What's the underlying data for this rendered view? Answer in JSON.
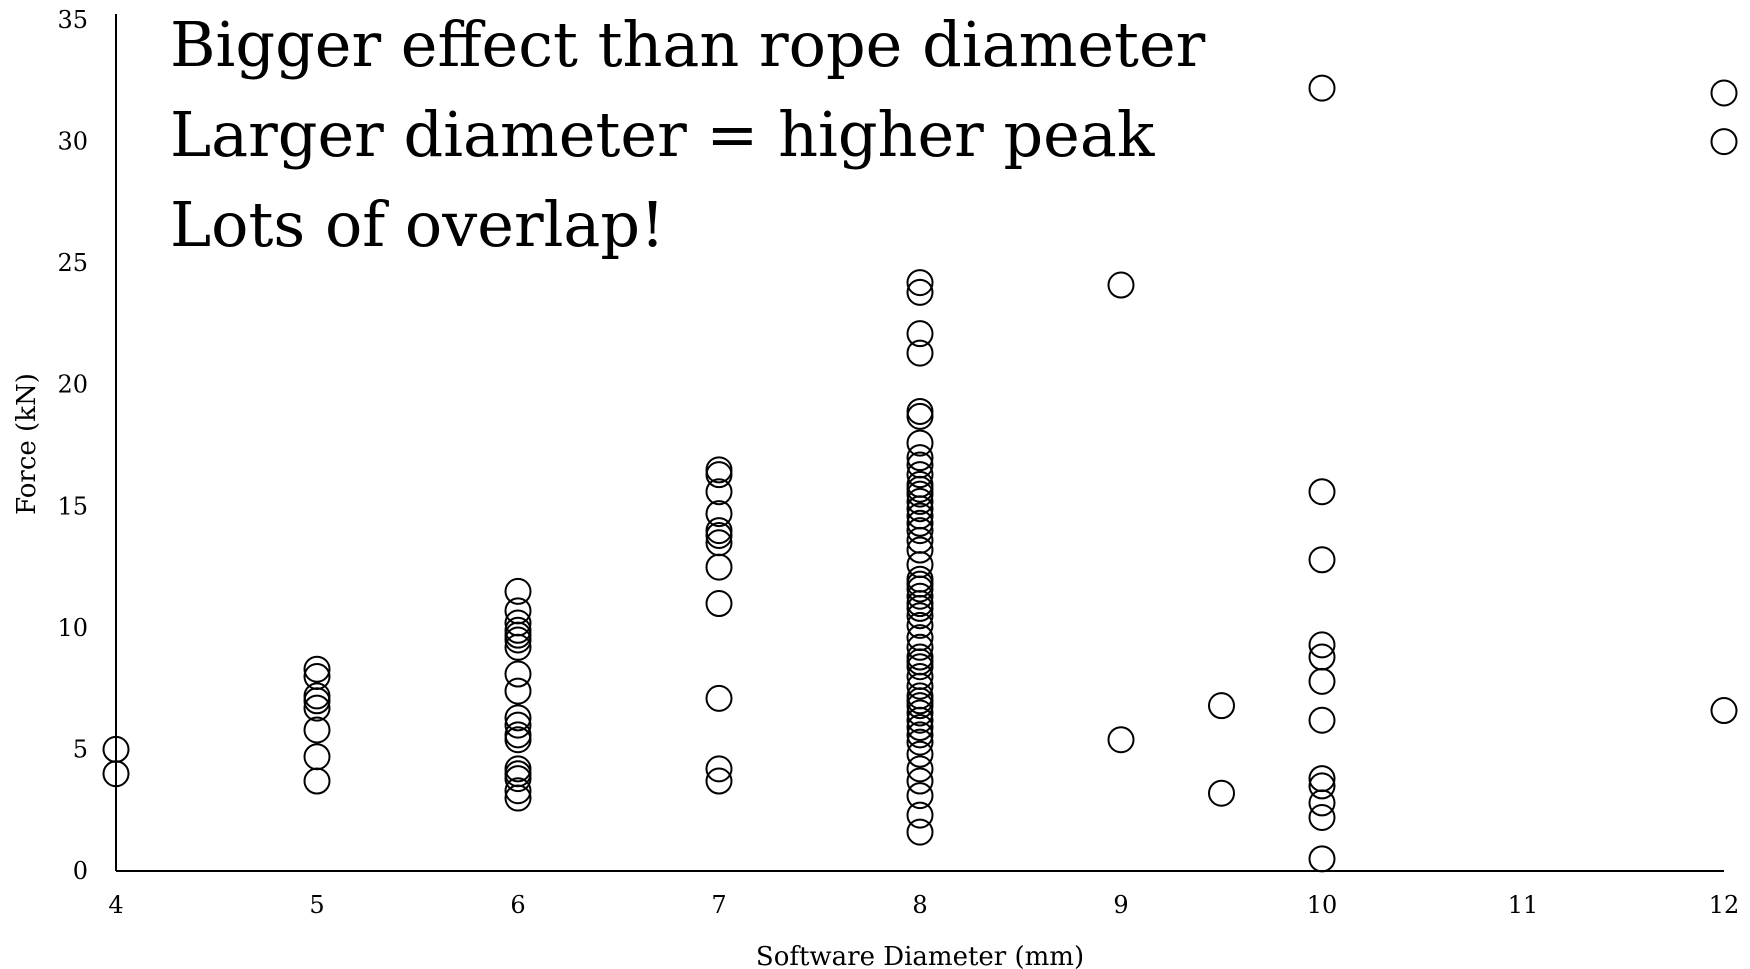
{
  "chart_data": {
    "type": "scatter",
    "title": "",
    "xlabel": "Software Diameter (mm)",
    "ylabel": "Force (kN)",
    "xlim": [
      4,
      12
    ],
    "ylim": [
      0,
      35
    ],
    "x_ticks": [
      "4",
      "5",
      "6",
      "7",
      "8",
      "9",
      "10",
      "11",
      "12"
    ],
    "y_ticks": [
      "0",
      "5",
      "10",
      "15",
      "20",
      "25",
      "30",
      "35"
    ],
    "grid": false,
    "legend": "none",
    "marker": "open-circle",
    "marker_color": "#000000",
    "annotations": [
      "Bigger effect than rope diameter",
      "Larger diameter = higher peak",
      "Lots of overlap!"
    ],
    "series": [
      {
        "points": [
          [
            4,
            5.0
          ],
          [
            4,
            4.0
          ],
          [
            5,
            8.3
          ],
          [
            5,
            8.0
          ],
          [
            5,
            7.2
          ],
          [
            5,
            7.0
          ],
          [
            5,
            6.7
          ],
          [
            5,
            5.8
          ],
          [
            5,
            4.7
          ],
          [
            5,
            3.7
          ],
          [
            6,
            11.5
          ],
          [
            6,
            10.7
          ],
          [
            6,
            10.2
          ],
          [
            6,
            9.9
          ],
          [
            6,
            9.7
          ],
          [
            6,
            9.5
          ],
          [
            6,
            9.2
          ],
          [
            6,
            8.1
          ],
          [
            6,
            7.4
          ],
          [
            6,
            6.3
          ],
          [
            6,
            6.0
          ],
          [
            6,
            5.6
          ],
          [
            6,
            5.4
          ],
          [
            6,
            4.2
          ],
          [
            6,
            4.0
          ],
          [
            6,
            3.8
          ],
          [
            6,
            3.3
          ],
          [
            6,
            3.0
          ],
          [
            7,
            16.5
          ],
          [
            7,
            16.3
          ],
          [
            7,
            15.6
          ],
          [
            7,
            14.7
          ],
          [
            7,
            14.0
          ],
          [
            7,
            13.8
          ],
          [
            7,
            13.5
          ],
          [
            7,
            12.5
          ],
          [
            7,
            11.0
          ],
          [
            7,
            7.1
          ],
          [
            7,
            4.2
          ],
          [
            7,
            3.7
          ],
          [
            8,
            24.2
          ],
          [
            8,
            23.8
          ],
          [
            8,
            22.1
          ],
          [
            8,
            21.3
          ],
          [
            8,
            18.9
          ],
          [
            8,
            18.7
          ],
          [
            8,
            17.6
          ],
          [
            8,
            17.0
          ],
          [
            8,
            16.7
          ],
          [
            8,
            16.3
          ],
          [
            8,
            15.9
          ],
          [
            8,
            15.7
          ],
          [
            8,
            15.5
          ],
          [
            8,
            15.2
          ],
          [
            8,
            14.9
          ],
          [
            8,
            14.6
          ],
          [
            8,
            14.3
          ],
          [
            8,
            14.0
          ],
          [
            8,
            13.6
          ],
          [
            8,
            13.2
          ],
          [
            8,
            12.6
          ],
          [
            8,
            12.0
          ],
          [
            8,
            11.8
          ],
          [
            8,
            11.6
          ],
          [
            8,
            11.3
          ],
          [
            8,
            11.0
          ],
          [
            8,
            10.8
          ],
          [
            8,
            10.5
          ],
          [
            8,
            10.1
          ],
          [
            8,
            9.6
          ],
          [
            8,
            9.2
          ],
          [
            8,
            8.8
          ],
          [
            8,
            8.6
          ],
          [
            8,
            8.4
          ],
          [
            8,
            8.0
          ],
          [
            8,
            7.6
          ],
          [
            8,
            7.2
          ],
          [
            8,
            7.0
          ],
          [
            8,
            6.8
          ],
          [
            8,
            6.5
          ],
          [
            8,
            6.2
          ],
          [
            8,
            5.9
          ],
          [
            8,
            5.6
          ],
          [
            8,
            5.3
          ],
          [
            8,
            4.8
          ],
          [
            8,
            4.2
          ],
          [
            8,
            3.7
          ],
          [
            8,
            3.1
          ],
          [
            8,
            2.3
          ],
          [
            8,
            1.6
          ],
          [
            9,
            24.1
          ],
          [
            9,
            5.4
          ],
          [
            9.5,
            6.8
          ],
          [
            9.5,
            3.2
          ],
          [
            10,
            32.2
          ],
          [
            10,
            15.6
          ],
          [
            10,
            12.8
          ],
          [
            10,
            9.3
          ],
          [
            10,
            8.8
          ],
          [
            10,
            7.8
          ],
          [
            10,
            6.2
          ],
          [
            10,
            3.8
          ],
          [
            10,
            3.5
          ],
          [
            10,
            2.8
          ],
          [
            10,
            2.2
          ],
          [
            10,
            0.5
          ],
          [
            12,
            32.0
          ],
          [
            12,
            30.0
          ],
          [
            12,
            6.6
          ]
        ]
      }
    ]
  }
}
